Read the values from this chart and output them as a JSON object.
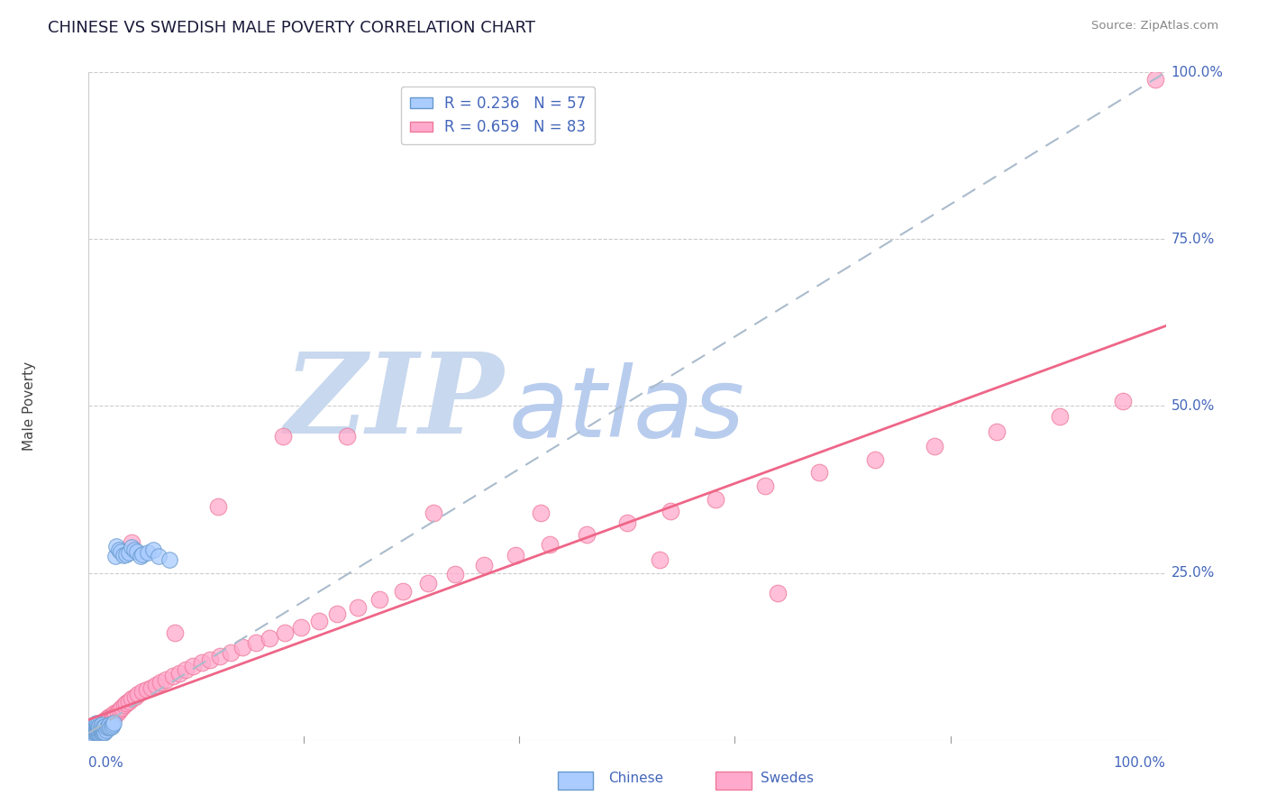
{
  "title": "CHINESE VS SWEDISH MALE POVERTY CORRELATION CHART",
  "source": "Source: ZipAtlas.com",
  "ylabel": "Male Poverty",
  "xlim": [
    0.0,
    1.0
  ],
  "ylim": [
    0.0,
    1.0
  ],
  "chinese_R": 0.236,
  "chinese_N": 57,
  "swedes_R": 0.659,
  "swedes_N": 83,
  "chinese_color": "#aaccff",
  "swedes_color": "#ffaacc",
  "chinese_edge_color": "#6699cc",
  "swedes_edge_color": "#ee7799",
  "chinese_line_color": "#aabbcc",
  "swedes_line_color": "#ee6688",
  "title_color": "#1a1a3a",
  "axis_label_color": "#4466bb",
  "background_color": "#ffffff",
  "watermark_zip_color": "#c8d8ee",
  "watermark_atlas_color": "#b8ccee",
  "grid_color": "#cccccc",
  "legend_facecolor": "#ffffff",
  "legend_edgecolor": "#cccccc",
  "chinese_x": [
    0.003,
    0.004,
    0.004,
    0.005,
    0.005,
    0.005,
    0.006,
    0.006,
    0.006,
    0.007,
    0.007,
    0.007,
    0.007,
    0.008,
    0.008,
    0.008,
    0.009,
    0.009,
    0.009,
    0.01,
    0.01,
    0.01,
    0.011,
    0.011,
    0.012,
    0.012,
    0.012,
    0.013,
    0.013,
    0.014,
    0.014,
    0.015,
    0.015,
    0.016,
    0.017,
    0.018,
    0.019,
    0.02,
    0.021,
    0.022,
    0.023,
    0.025,
    0.026,
    0.028,
    0.03,
    0.032,
    0.035,
    0.037,
    0.04,
    0.042,
    0.045,
    0.048,
    0.05,
    0.055,
    0.06,
    0.065,
    0.075
  ],
  "chinese_y": [
    0.01,
    0.015,
    0.008,
    0.012,
    0.018,
    0.022,
    0.01,
    0.016,
    0.02,
    0.012,
    0.015,
    0.019,
    0.025,
    0.01,
    0.018,
    0.022,
    0.012,
    0.016,
    0.02,
    0.01,
    0.015,
    0.02,
    0.012,
    0.018,
    0.01,
    0.015,
    0.022,
    0.012,
    0.018,
    0.01,
    0.016,
    0.012,
    0.02,
    0.015,
    0.018,
    0.02,
    0.022,
    0.018,
    0.02,
    0.022,
    0.025,
    0.275,
    0.29,
    0.285,
    0.282,
    0.276,
    0.278,
    0.28,
    0.288,
    0.285,
    0.282,
    0.275,
    0.278,
    0.28,
    0.285,
    0.275,
    0.27
  ],
  "swedes_x": [
    0.003,
    0.004,
    0.005,
    0.006,
    0.007,
    0.007,
    0.008,
    0.009,
    0.01,
    0.011,
    0.012,
    0.013,
    0.014,
    0.015,
    0.016,
    0.017,
    0.018,
    0.019,
    0.02,
    0.021,
    0.022,
    0.023,
    0.024,
    0.025,
    0.027,
    0.029,
    0.031,
    0.033,
    0.035,
    0.037,
    0.04,
    0.043,
    0.046,
    0.05,
    0.054,
    0.058,
    0.062,
    0.067,
    0.072,
    0.078,
    0.084,
    0.09,
    0.097,
    0.105,
    0.113,
    0.122,
    0.132,
    0.143,
    0.155,
    0.168,
    0.182,
    0.197,
    0.214,
    0.231,
    0.25,
    0.27,
    0.292,
    0.315,
    0.34,
    0.367,
    0.396,
    0.428,
    0.462,
    0.5,
    0.54,
    0.582,
    0.628,
    0.678,
    0.73,
    0.785,
    0.843,
    0.902,
    0.96,
    0.04,
    0.08,
    0.12,
    0.18,
    0.24,
    0.32,
    0.42,
    0.53,
    0.64,
    0.99
  ],
  "swedes_y": [
    0.005,
    0.008,
    0.01,
    0.012,
    0.015,
    0.01,
    0.018,
    0.015,
    0.02,
    0.022,
    0.025,
    0.022,
    0.028,
    0.025,
    0.03,
    0.028,
    0.033,
    0.03,
    0.035,
    0.032,
    0.038,
    0.035,
    0.04,
    0.038,
    0.042,
    0.045,
    0.048,
    0.052,
    0.055,
    0.058,
    0.062,
    0.065,
    0.068,
    0.072,
    0.075,
    0.078,
    0.082,
    0.086,
    0.09,
    0.095,
    0.1,
    0.105,
    0.11,
    0.115,
    0.12,
    0.125,
    0.13,
    0.138,
    0.145,
    0.152,
    0.16,
    0.168,
    0.178,
    0.188,
    0.198,
    0.21,
    0.222,
    0.235,
    0.248,
    0.262,
    0.276,
    0.292,
    0.308,
    0.325,
    0.342,
    0.36,
    0.38,
    0.4,
    0.42,
    0.44,
    0.462,
    0.485,
    0.508,
    0.295,
    0.16,
    0.35,
    0.455,
    0.455,
    0.34,
    0.34,
    0.27,
    0.22,
    0.99
  ],
  "chinese_trendline_x": [
    0.0,
    1.0
  ],
  "chinese_trendline_y": [
    0.01,
    1.0
  ],
  "swedes_trendline_x": [
    0.0,
    1.0
  ],
  "swedes_trendline_y": [
    0.03,
    0.62
  ]
}
